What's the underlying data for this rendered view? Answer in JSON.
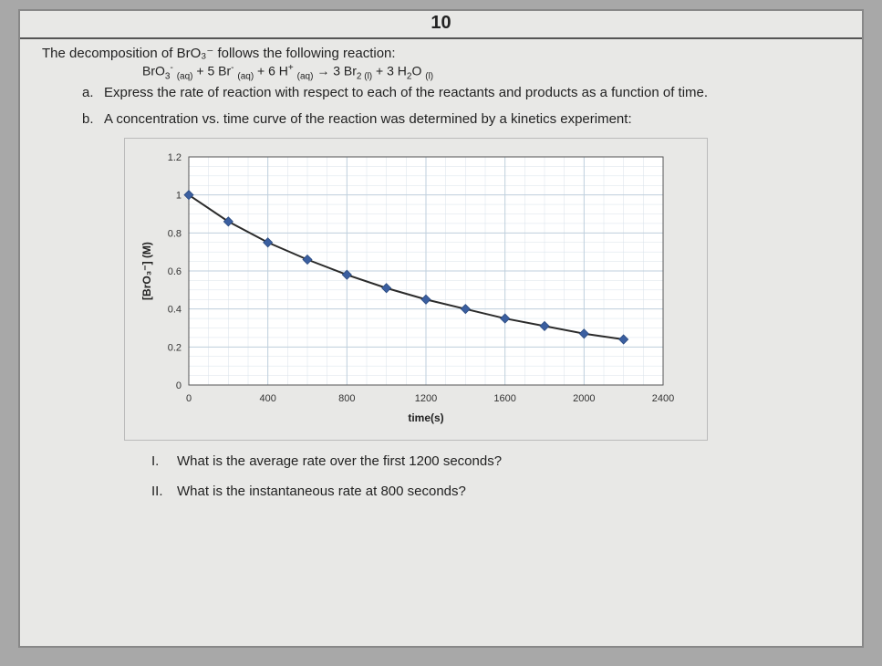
{
  "page_number": "10",
  "intro": "The decomposition of BrO₃⁻ follows the following reaction:",
  "equation_html": "BrO<span class='sub'>3</span><span class='sup'>-</span> <span class='sub'>(aq)</span> + 5 Br<span class='sup'>-</span> <span class='sub'>(aq)</span> + 6 H<span class='sup'>+</span> <span class='sub'>(aq)</span> → 3 Br<span class='sub'>2 (l)</span> + 3 H<span class='sub'>2</span>O <span class='sub'>(l)</span>",
  "part_a_marker": "a.",
  "part_a": "Express the rate of reaction with respect to each of the reactants and products as a function of time.",
  "part_b_marker": "b.",
  "part_b": "A concentration vs. time curve of the reaction was determined by a kinetics experiment:",
  "sub_i_marker": "I.",
  "sub_i": "What is the average rate over the first 1200 seconds?",
  "sub_ii_marker": "II.",
  "sub_ii": "What is the instantaneous rate at 800 seconds?",
  "chart": {
    "type": "line-scatter",
    "xlabel": "time(s)",
    "ylabel": "[BrO₃⁻] (M)",
    "xlim": [
      0,
      2400
    ],
    "ylim": [
      0,
      1.2
    ],
    "xticks": [
      0,
      400,
      800,
      1200,
      1600,
      2000,
      2400
    ],
    "yticks": [
      0,
      0.2,
      0.4,
      0.6,
      0.8,
      1,
      1.2
    ],
    "grid_major_color": "#bfcfdc",
    "grid_minor_color": "#d8e2ea",
    "background_color": "#eef2f5",
    "plot_area_color": "#ffffff",
    "line_color": "#2b2b2b",
    "marker_color": "#3b5fa0",
    "marker_size": 5,
    "axis_color": "#555555",
    "tick_label_fontsize": 11,
    "axis_label_fontsize": 12,
    "data": [
      {
        "x": 0,
        "y": 1.0
      },
      {
        "x": 200,
        "y": 0.86
      },
      {
        "x": 400,
        "y": 0.75
      },
      {
        "x": 600,
        "y": 0.66
      },
      {
        "x": 800,
        "y": 0.58
      },
      {
        "x": 1000,
        "y": 0.51
      },
      {
        "x": 1200,
        "y": 0.45
      },
      {
        "x": 1400,
        "y": 0.4
      },
      {
        "x": 1600,
        "y": 0.35
      },
      {
        "x": 1800,
        "y": 0.31
      },
      {
        "x": 2000,
        "y": 0.27
      },
      {
        "x": 2200,
        "y": 0.24
      }
    ]
  }
}
